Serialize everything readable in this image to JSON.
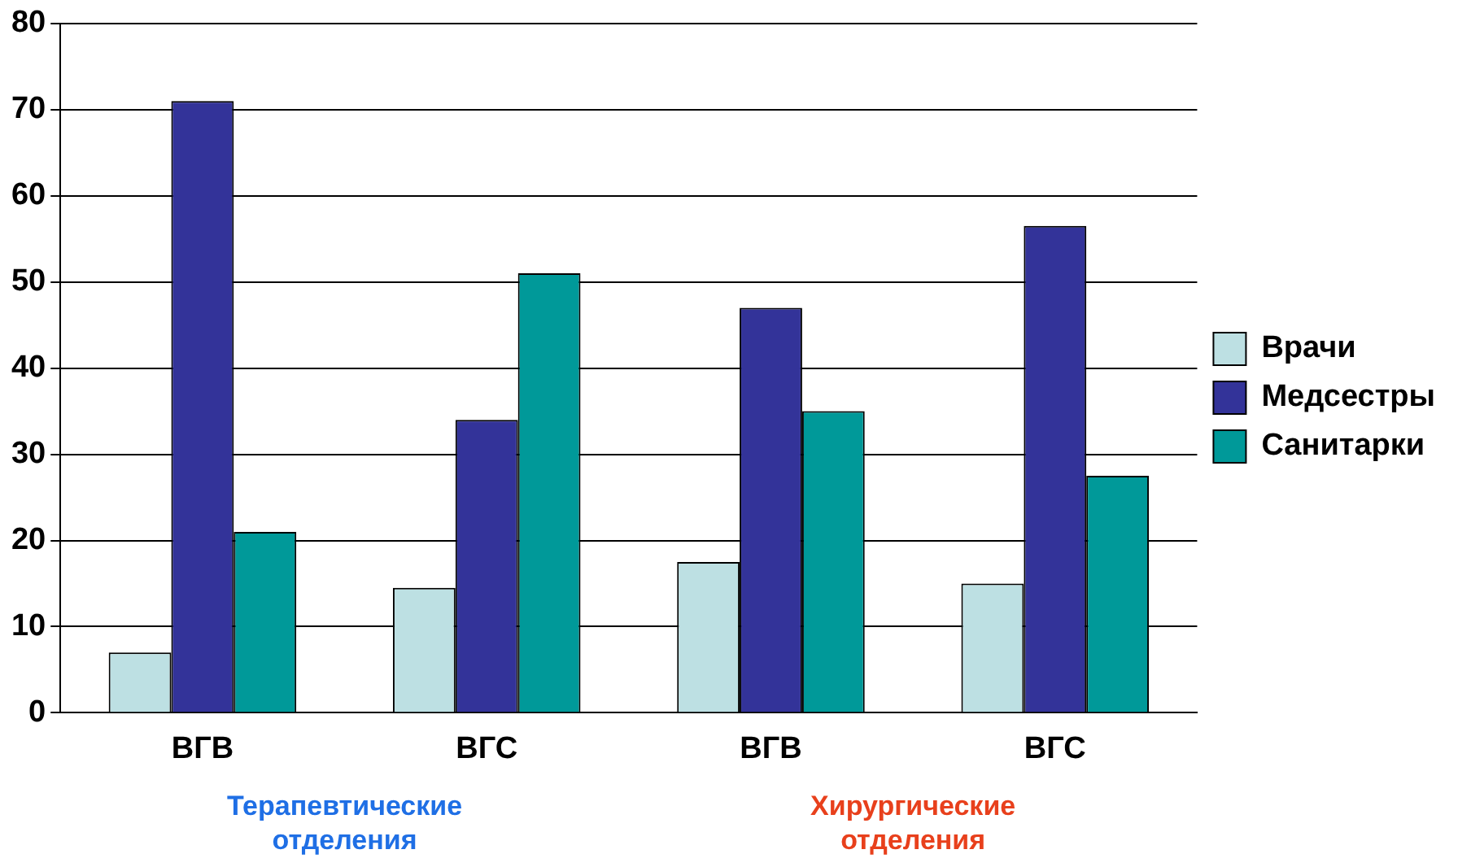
{
  "chart_data": {
    "type": "bar",
    "categories": [
      "ВГВ",
      "ВГС",
      "ВГВ",
      "ВГС"
    ],
    "series": [
      {
        "name": "Врачи",
        "color": "#bde0e3",
        "values": [
          7,
          14.5,
          17.5,
          15
        ]
      },
      {
        "name": "Медсестры",
        "color": "#333399",
        "values": [
          71,
          34,
          47,
          56.5
        ]
      },
      {
        "name": "Санитарки",
        "color": "#009999",
        "values": [
          21,
          51,
          35,
          27.5
        ]
      }
    ],
    "ylim": [
      0,
      80
    ],
    "yticks": [
      0,
      10,
      20,
      30,
      40,
      50,
      60,
      70,
      80
    ],
    "grid": "y",
    "legend": "right",
    "annotations": [
      "Терапевтические отделения",
      "Хирургические отделения"
    ]
  }
}
